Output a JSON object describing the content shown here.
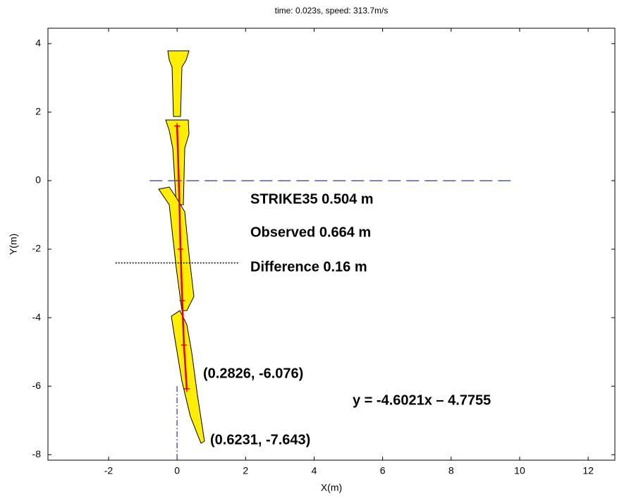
{
  "chart_data": {
    "type": "line",
    "title": "time:  0.023s,  speed:  313.7m/s",
    "xlabel": "X(m)",
    "ylabel": "Y(m)",
    "xlim": [
      -3.77,
      12.78
    ],
    "ylim": [
      -8.16,
      4.45
    ],
    "xticks": [
      -2,
      0,
      2,
      4,
      6,
      8,
      10,
      12
    ],
    "yticks": [
      -8,
      -6,
      -4,
      -2,
      0,
      2,
      4
    ],
    "series": [
      {
        "color": "#e00000",
        "style": "solid-plus",
        "x": [
          0,
          0.05,
          0.1,
          0.15,
          0.2,
          0.2826
        ],
        "y": [
          1.6,
          0,
          -2,
          -3.5,
          -4.8,
          -6.076
        ]
      },
      {
        "color": "#5555bb",
        "style": "dashed",
        "x": [
          -0.8,
          9.9
        ],
        "y": [
          0,
          0
        ]
      },
      {
        "color": "#000000",
        "style": "dotted",
        "x": [
          -1.8,
          1.8
        ],
        "y": [
          -2.4,
          -2.4
        ]
      },
      {
        "color": "#5555bb",
        "style": "dashdot",
        "x": [
          0,
          0
        ],
        "y": [
          -6,
          -8.1
        ]
      }
    ],
    "annotations": [
      "STRIKE35 0.504 m",
      "Observed 0.664 m",
      "Difference 0.16 m",
      "(0.2826, -6.076)",
      "y = -4.6021x – 4.7755",
      "(0.6231, -7.643)"
    ]
  }
}
